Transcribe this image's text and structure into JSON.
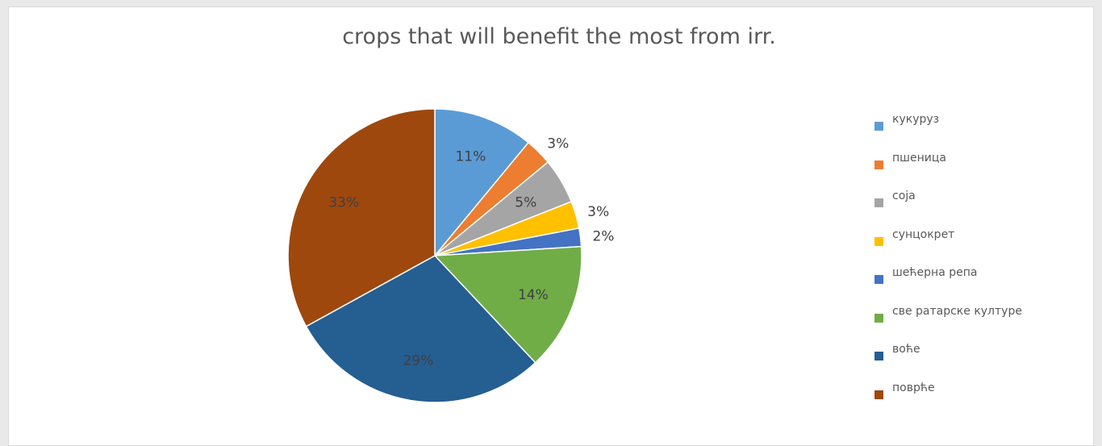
{
  "chart_data": {
    "type": "pie",
    "title": "crops that will benefit the most from irr.",
    "slices": [
      {
        "label": "кукуруз",
        "value": 11,
        "display": "11%",
        "color": "#5b9bd5"
      },
      {
        "label": "пшеница",
        "value": 3,
        "display": "3%",
        "color": "#ed7d31"
      },
      {
        "label": "соја",
        "value": 5,
        "display": "5%",
        "color": "#a5a5a5"
      },
      {
        "label": "сунцокрет",
        "value": 3,
        "display": "3%",
        "color": "#ffc000"
      },
      {
        "label": "шећерна репа",
        "value": 2,
        "display": "2%",
        "color": "#4472c4"
      },
      {
        "label": "све ратарске културе",
        "value": 14,
        "display": "14%",
        "color": "#70ad47"
      },
      {
        "label": "воће",
        "value": 29,
        "display": "29%",
        "color": "#255e91"
      },
      {
        "label": "поврће",
        "value": 33,
        "display": "33%",
        "color": "#9e480e"
      }
    ],
    "legend_position": "right"
  }
}
